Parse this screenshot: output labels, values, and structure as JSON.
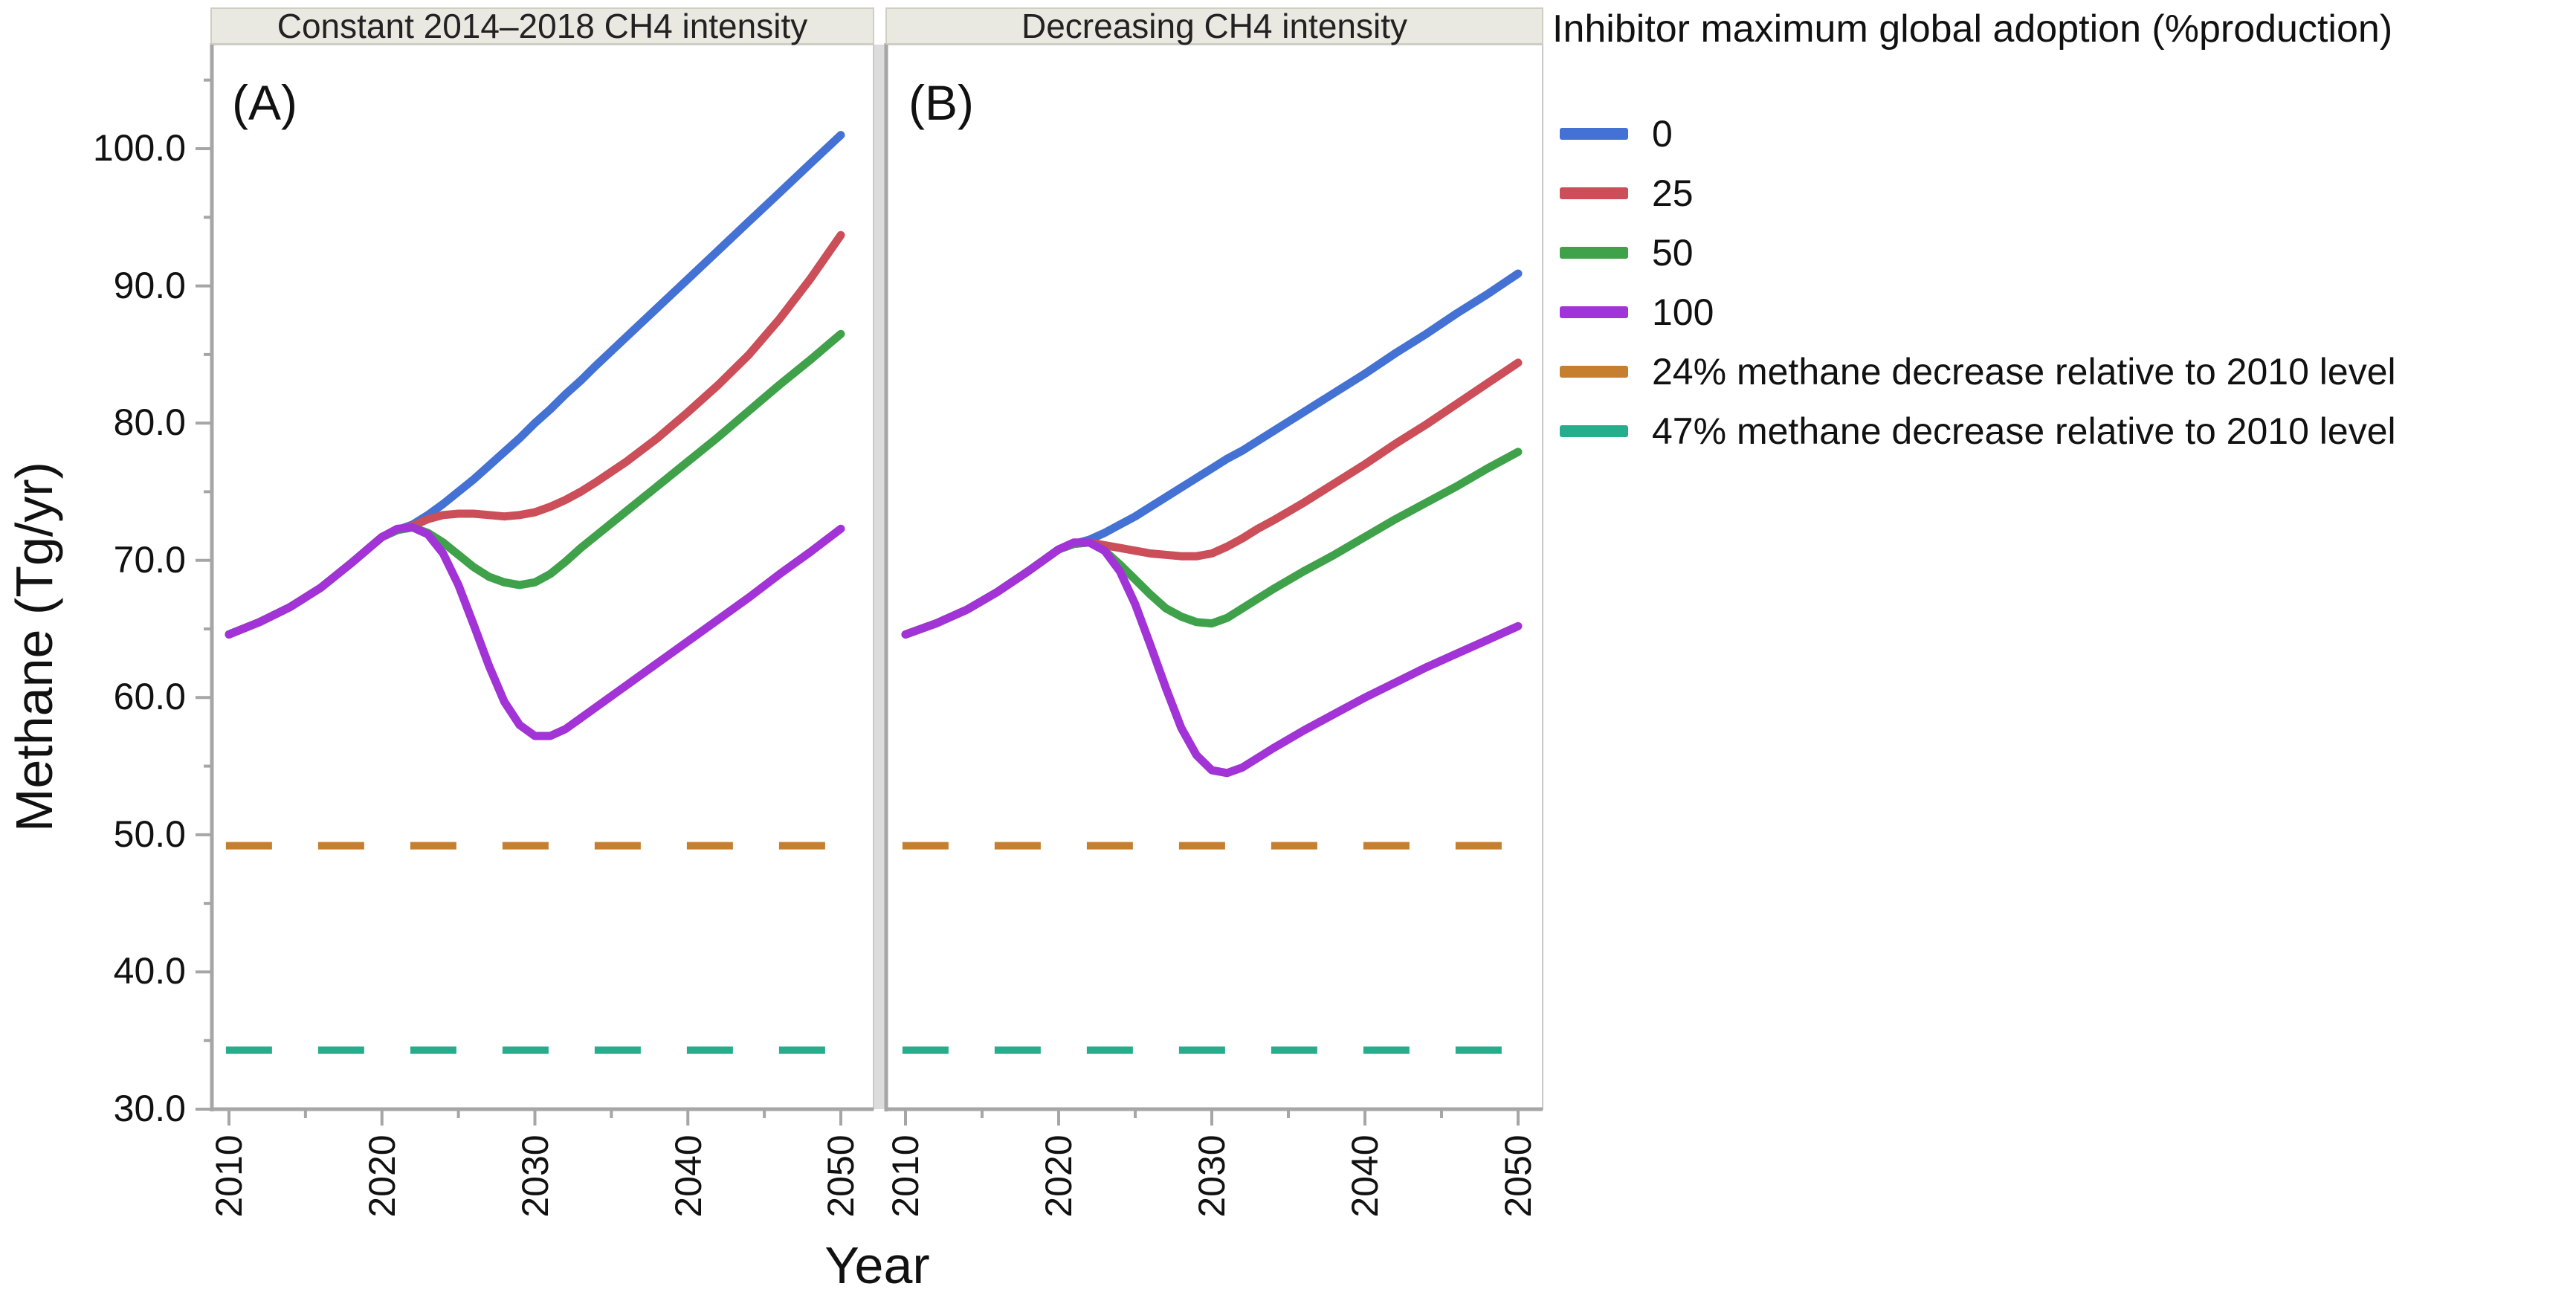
{
  "figure": {
    "panels": [
      {
        "id": "A",
        "letter": "(A)",
        "header": "Constant 2014–2018 CH4 intensity"
      },
      {
        "id": "B",
        "letter": "(B)",
        "header": "Decreasing CH4 intensity"
      }
    ]
  },
  "axes": {
    "y": {
      "title": "Methane (Tg/yr)",
      "tick_labels": [
        "100.0",
        "90.0",
        "80.0",
        "70.0",
        "60.0",
        "50.0",
        "40.0",
        "30.0"
      ],
      "range": [
        30,
        107.7
      ]
    },
    "x": {
      "title": "Year",
      "tick_labels": [
        "2010",
        "2020",
        "2030",
        "2040",
        "2050"
      ],
      "minor_ticks": [
        2015,
        2025,
        2035,
        2045
      ],
      "range": [
        2008.9,
        2052.1
      ]
    }
  },
  "legend": {
    "title": "Inhibitor maximum global adoption (%production)",
    "entries": [
      {
        "label": "0",
        "color": "#4372d4",
        "style": "solid"
      },
      {
        "label": "25",
        "color": "#cb4e58",
        "style": "solid"
      },
      {
        "label": "50",
        "color": "#3fa24a",
        "style": "solid"
      },
      {
        "label": "100",
        "color": "#a233d6",
        "style": "solid"
      },
      {
        "label": "24% methane decrease relative to 2010 level",
        "color": "#c67f2e",
        "style": "dashed"
      },
      {
        "label": "47% methane decrease relative to 2010 level",
        "color": "#28ad8c",
        "style": "dashed"
      }
    ]
  },
  "colors": {
    "axis": "#a6a6a6",
    "panel_border": "#c9c9c9",
    "panel_gutter": "#dcdcdc",
    "header_bg": "#e9e8e1"
  },
  "chart_data": [
    {
      "type": "line",
      "panel": "A",
      "title": "Constant 2014–2018 CH4 intensity",
      "xlabel": "Year",
      "ylabel": "Methane (Tg/yr)",
      "xlim": [
        2008.9,
        2052.1
      ],
      "ylim": [
        30,
        107.7
      ],
      "x": [
        2010,
        2012,
        2014,
        2016,
        2018,
        2020,
        2021,
        2022,
        2023,
        2024,
        2025,
        2026,
        2027,
        2028,
        2029,
        2030,
        2031,
        2032,
        2033,
        2034,
        2036,
        2038,
        2040,
        2042,
        2044,
        2046,
        2048,
        2050
      ],
      "series": [
        {
          "name": "0",
          "color": "#4372d4",
          "style": "solid",
          "values": [
            64.6,
            65.5,
            66.6,
            68.0,
            69.8,
            71.7,
            72.2,
            72.6,
            73.3,
            74.1,
            75.0,
            75.9,
            76.9,
            77.9,
            78.9,
            80.0,
            81.0,
            82.1,
            83.1,
            84.2,
            86.3,
            88.4,
            90.5,
            92.6,
            94.7,
            96.8,
            98.9,
            101.0
          ]
        },
        {
          "name": "25",
          "color": "#cb4e58",
          "style": "solid",
          "values": [
            64.6,
            65.5,
            66.6,
            68.0,
            69.8,
            71.7,
            72.2,
            72.5,
            73.0,
            73.3,
            73.4,
            73.4,
            73.3,
            73.2,
            73.3,
            73.5,
            73.9,
            74.4,
            75.0,
            75.7,
            77.2,
            78.9,
            80.8,
            82.8,
            85.0,
            87.6,
            90.5,
            93.7
          ]
        },
        {
          "name": "50",
          "color": "#3fa24a",
          "style": "solid",
          "values": [
            64.6,
            65.5,
            66.6,
            68.0,
            69.8,
            71.7,
            72.2,
            72.4,
            72.0,
            71.3,
            70.4,
            69.5,
            68.8,
            68.4,
            68.2,
            68.4,
            69.0,
            69.9,
            70.9,
            71.8,
            73.6,
            75.4,
            77.2,
            79.0,
            80.9,
            82.8,
            84.6,
            86.5
          ]
        },
        {
          "name": "100",
          "color": "#a233d6",
          "style": "solid",
          "values": [
            64.6,
            65.5,
            66.6,
            68.0,
            69.8,
            71.7,
            72.3,
            72.4,
            71.9,
            70.5,
            68.2,
            65.3,
            62.3,
            59.7,
            58.0,
            57.2,
            57.2,
            57.7,
            58.5,
            59.3,
            60.9,
            62.5,
            64.1,
            65.7,
            67.3,
            69.0,
            70.6,
            72.3
          ]
        }
      ],
      "reference_lines": [
        {
          "name": "24% methane decrease relative to 2010 level",
          "color": "#c67f2e",
          "style": "dashed",
          "y": 49.2
        },
        {
          "name": "47% methane decrease relative to 2010 level",
          "color": "#28ad8c",
          "style": "dashed",
          "y": 34.3
        }
      ]
    },
    {
      "type": "line",
      "panel": "B",
      "title": "Decreasing CH4 intensity",
      "xlabel": "Year",
      "ylabel": "Methane (Tg/yr)",
      "xlim": [
        2008.9,
        2052.1
      ],
      "ylim": [
        30,
        107.7
      ],
      "x": [
        2010,
        2012,
        2014,
        2016,
        2018,
        2020,
        2021,
        2022,
        2023,
        2024,
        2025,
        2026,
        2027,
        2028,
        2029,
        2030,
        2031,
        2032,
        2033,
        2034,
        2036,
        2038,
        2040,
        2042,
        2044,
        2046,
        2048,
        2050
      ],
      "series": [
        {
          "name": "0",
          "color": "#4372d4",
          "style": "solid",
          "values": [
            64.6,
            65.4,
            66.4,
            67.7,
            69.2,
            70.8,
            71.2,
            71.5,
            72.0,
            72.6,
            73.2,
            73.9,
            74.6,
            75.3,
            76.0,
            76.7,
            77.4,
            78.0,
            78.7,
            79.4,
            80.8,
            82.2,
            83.6,
            85.1,
            86.5,
            88.0,
            89.4,
            90.9
          ]
        },
        {
          "name": "25",
          "color": "#cb4e58",
          "style": "solid",
          "values": [
            64.6,
            65.4,
            66.4,
            67.7,
            69.2,
            70.8,
            71.2,
            71.3,
            71.1,
            70.9,
            70.7,
            70.5,
            70.4,
            70.3,
            70.3,
            70.5,
            71.0,
            71.6,
            72.3,
            72.9,
            74.2,
            75.6,
            77.0,
            78.5,
            79.9,
            81.4,
            82.9,
            84.4
          ]
        },
        {
          "name": "50",
          "color": "#3fa24a",
          "style": "solid",
          "values": [
            64.6,
            65.4,
            66.4,
            67.7,
            69.2,
            70.8,
            71.2,
            71.3,
            70.7,
            69.7,
            68.6,
            67.5,
            66.5,
            65.9,
            65.5,
            65.4,
            65.8,
            66.5,
            67.2,
            67.9,
            69.2,
            70.4,
            71.7,
            73.0,
            74.2,
            75.4,
            76.7,
            77.9
          ]
        },
        {
          "name": "100",
          "color": "#a233d6",
          "style": "solid",
          "values": [
            64.6,
            65.4,
            66.4,
            67.7,
            69.2,
            70.8,
            71.3,
            71.3,
            70.7,
            69.2,
            66.8,
            63.8,
            60.7,
            57.8,
            55.8,
            54.7,
            54.5,
            54.9,
            55.6,
            56.3,
            57.6,
            58.8,
            60.0,
            61.1,
            62.2,
            63.2,
            64.2,
            65.2
          ]
        }
      ],
      "reference_lines": [
        {
          "name": "24% methane decrease relative to 2010 level",
          "color": "#c67f2e",
          "style": "dashed",
          "y": 49.2
        },
        {
          "name": "47% methane decrease relative to 2010 level",
          "color": "#28ad8c",
          "style": "dashed",
          "y": 34.3
        }
      ]
    }
  ]
}
